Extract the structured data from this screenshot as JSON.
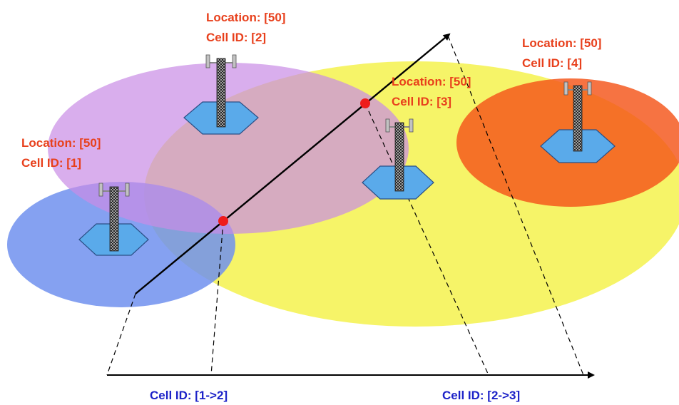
{
  "colors": {
    "cell_label": "#e8401c",
    "handover_label": "#1c22c8",
    "handover_point": "#ee1c1c",
    "coverage_1": "#7090ee",
    "coverage_2": "#c98be6",
    "coverage_3": "#f5f24e",
    "coverage_4": "#f45418",
    "tower_base": "#5aaaea"
  },
  "cells": [
    {
      "location": "Location: [50]",
      "cell_id": "Cell ID: [1]"
    },
    {
      "location": "Location: [50]",
      "cell_id": "Cell ID: [2]"
    },
    {
      "location": "Location: [50]",
      "cell_id": "Cell ID: [3]"
    },
    {
      "location": "Location: [50]",
      "cell_id": "Cell ID: [4]"
    }
  ],
  "handovers": [
    {
      "label": "Cell ID: [1->2]"
    },
    {
      "label": "Cell ID: [2->3]"
    }
  ]
}
